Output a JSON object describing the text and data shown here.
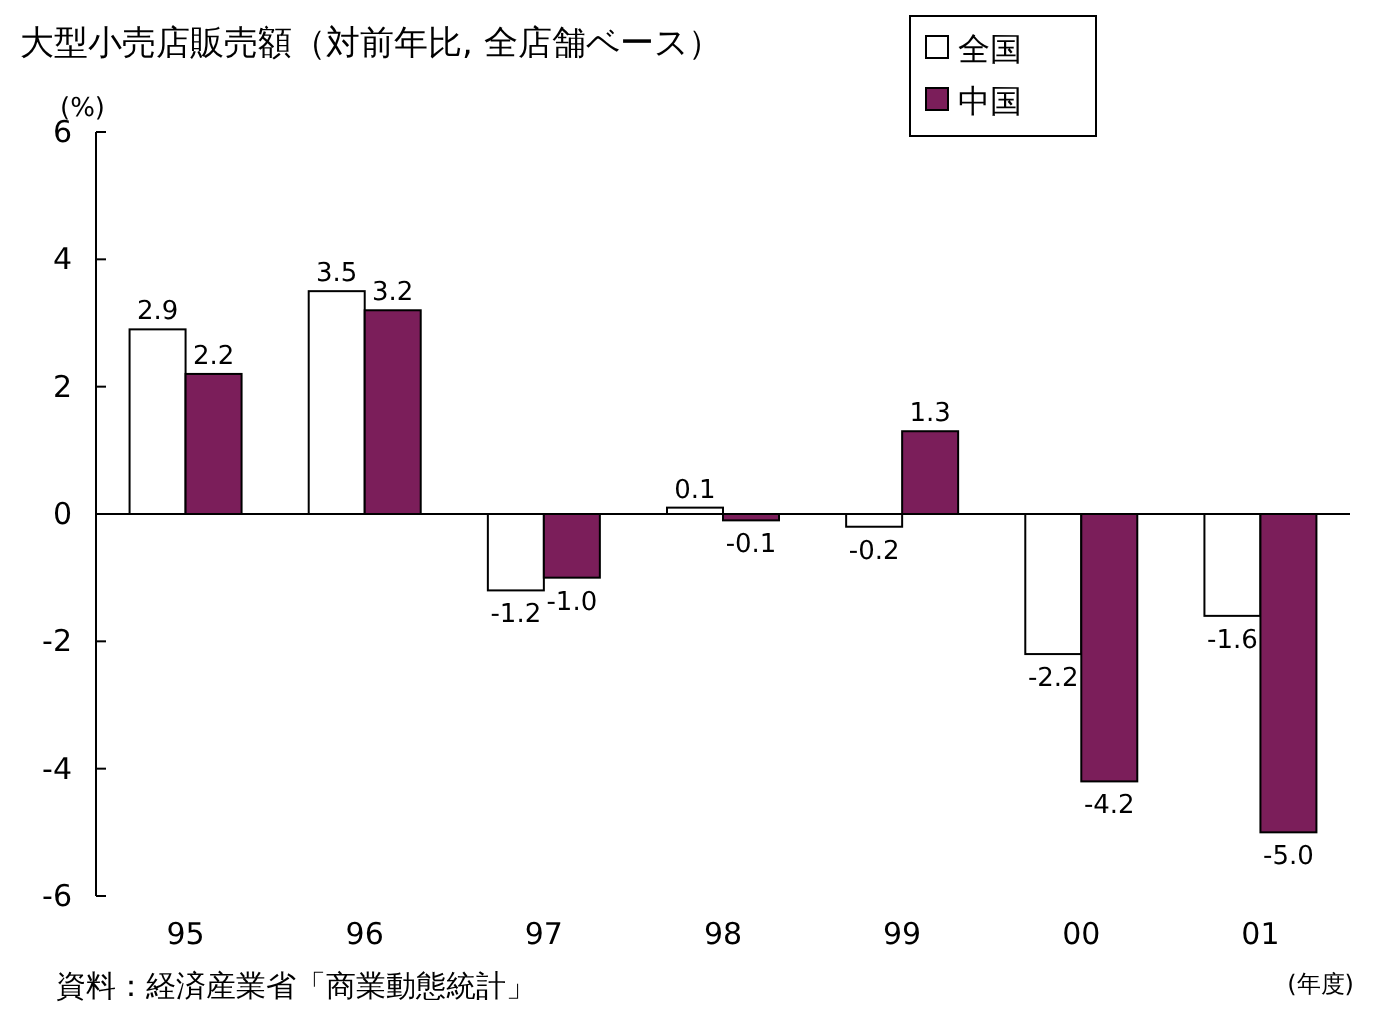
{
  "chart_data": {
    "type": "bar",
    "title": "大型小売店販売額（対前年比, 全店舗ベース）",
    "ylabel": "(%)",
    "xlabel": "(年度)",
    "annotations": [
      "資料：経済産業省「商業動態統計」"
    ],
    "categories": [
      "95",
      "96",
      "97",
      "98",
      "99",
      "00",
      "01"
    ],
    "series": [
      {
        "name": "全国",
        "color": "#ffffff",
        "values": [
          2.9,
          3.5,
          -1.2,
          0.1,
          -0.2,
          -2.2,
          -1.6
        ],
        "value_labels": [
          "2.9",
          "3.5",
          "-1.2",
          "0.1",
          "-0.2",
          "-2.2",
          "-1.6"
        ]
      },
      {
        "name": "中国",
        "color": "#7b1e5a",
        "values": [
          2.2,
          3.2,
          -1.0,
          -0.1,
          1.3,
          -4.2,
          -5.0
        ],
        "value_labels": [
          "2.2",
          "3.2",
          "-1.0",
          "-0.1",
          "1.3",
          "-4.2",
          "-5.0"
        ]
      }
    ],
    "ylim": [
      -6,
      6
    ],
    "yticks": [
      -6,
      -4,
      -2,
      0,
      2,
      4,
      6
    ],
    "legend": "top right"
  }
}
